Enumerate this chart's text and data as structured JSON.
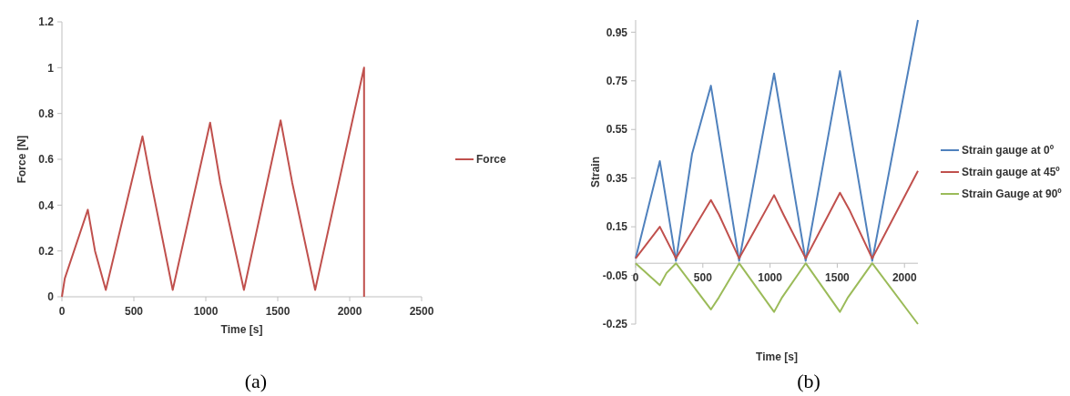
{
  "chart_data": [
    {
      "type": "line",
      "xlabel": "Time [s]",
      "ylabel": "Force [N]",
      "xlim": [
        0,
        2500
      ],
      "ylim": [
        0,
        1.2
      ],
      "xticks": [
        0,
        500,
        1000,
        1500,
        2000,
        2500
      ],
      "yticks": [
        0,
        0.2,
        0.4,
        0.6,
        0.8,
        1,
        1.2
      ],
      "legend": "right",
      "grid": false,
      "marker": "none",
      "annotations": [
        "(a)"
      ],
      "series": [
        {
          "name": "Force",
          "color": "#c0504d",
          "x": [
            0,
            20,
            180,
            230,
            305,
            560,
            620,
            770,
            1030,
            1100,
            1265,
            1520,
            1600,
            1760,
            2100,
            2100
          ],
          "values": [
            0,
            0.08,
            0.38,
            0.2,
            0.03,
            0.7,
            0.5,
            0.03,
            0.76,
            0.5,
            0.03,
            0.77,
            0.5,
            0.03,
            1,
            0
          ]
        }
      ]
    },
    {
      "type": "line",
      "xlabel": "Time [s]",
      "ylabel": "Strain",
      "xlim": [
        0,
        2100
      ],
      "ylim": [
        -0.25,
        1
      ],
      "xticks": [
        0,
        500,
        1000,
        1500,
        2000
      ],
      "yticks": [
        -0.25,
        -0.05,
        0.15,
        0.35,
        0.55,
        0.75,
        0.95
      ],
      "legend": "right",
      "grid": false,
      "marker": "none",
      "annotations": [
        "(b)"
      ],
      "series": [
        {
          "name": "Strain gauge at 0º",
          "color": "#4f81bd",
          "x": [
            0,
            180,
            300,
            420,
            560,
            770,
            1030,
            1265,
            1520,
            1760,
            2100
          ],
          "values": [
            0.02,
            0.42,
            0.01,
            0.45,
            0.73,
            0.01,
            0.78,
            0.01,
            0.79,
            0.01,
            1
          ]
        },
        {
          "name": "Strain gauge at 45º",
          "color": "#c0504d",
          "x": [
            0,
            180,
            300,
            560,
            620,
            770,
            1030,
            1100,
            1265,
            1520,
            1590,
            1760,
            2100
          ],
          "values": [
            0.02,
            0.15,
            0.02,
            0.26,
            0.2,
            0.02,
            0.28,
            0.2,
            0.02,
            0.29,
            0.22,
            0.02,
            0.38
          ]
        },
        {
          "name": "Strain Gauge at 90º",
          "color": "#9bbb59",
          "x": [
            0,
            180,
            230,
            300,
            560,
            620,
            770,
            1030,
            1090,
            1265,
            1520,
            1580,
            1760,
            2100
          ],
          "values": [
            0,
            -0.09,
            -0.04,
            0,
            -0.19,
            -0.14,
            0,
            -0.2,
            -0.14,
            0,
            -0.2,
            -0.14,
            0,
            -0.25
          ]
        }
      ]
    }
  ]
}
